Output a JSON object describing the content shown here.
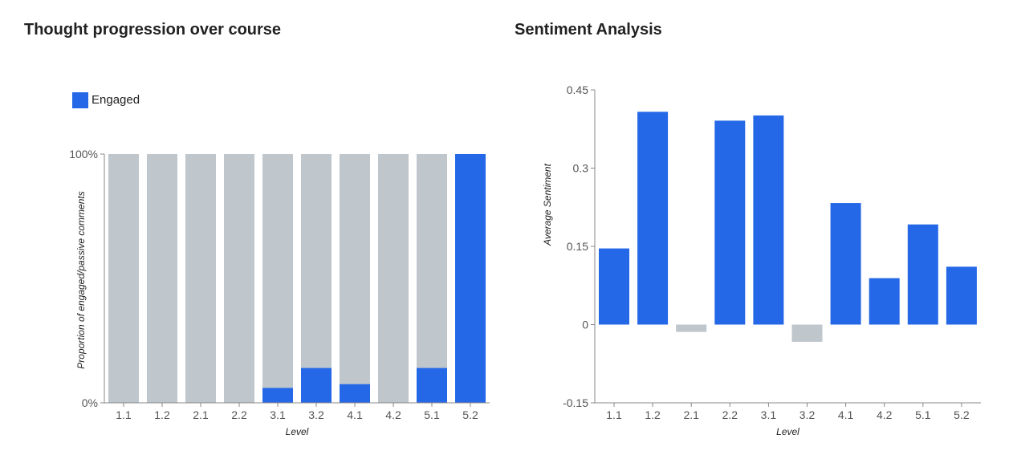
{
  "colors": {
    "engaged": "#2468e8",
    "passive": "#bfc6cc",
    "negative": "#bfc6cc",
    "axis": "#888888"
  },
  "chart_data": [
    {
      "type": "bar",
      "stacked": true,
      "title": "Thought progression over course",
      "xlabel": "Level",
      "ylabel": "Proportion of engaged/passive comments",
      "categories": [
        "1.1",
        "1.2",
        "2.1",
        "2.2",
        "3.1",
        "3.2",
        "4.1",
        "4.2",
        "5.1",
        "5.2"
      ],
      "series": [
        {
          "name": "Engaged",
          "values": [
            0,
            0,
            0,
            0,
            0.06,
            0.14,
            0.075,
            0,
            0.14,
            1.0
          ]
        }
      ],
      "ylim": [
        0,
        1
      ],
      "yticks": [
        "0%",
        "100%"
      ],
      "legend": {
        "position": "top-left",
        "entries": [
          "Engaged"
        ]
      }
    },
    {
      "type": "bar",
      "title": "Sentiment Analysis",
      "xlabel": "Level",
      "ylabel": "Average Sentiment",
      "categories": [
        "1.1",
        "1.2",
        "2.1",
        "2.2",
        "3.1",
        "3.2",
        "4.1",
        "4.2",
        "5.1",
        "5.2"
      ],
      "values": [
        0.146,
        0.408,
        -0.014,
        0.391,
        0.401,
        -0.033,
        0.233,
        0.089,
        0.192,
        0.111
      ],
      "ylim": [
        -0.15,
        0.45
      ],
      "yticks": [
        "0.45",
        "0.3",
        "0.15",
        "0",
        "-0.15"
      ]
    }
  ]
}
